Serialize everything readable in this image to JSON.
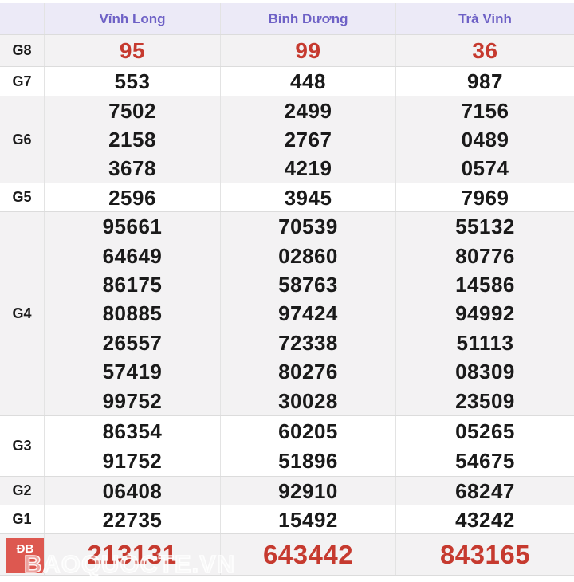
{
  "columns": [
    "Vĩnh Long",
    "Bình Dương",
    "Trà Vinh"
  ],
  "rows": [
    {
      "label": "G8",
      "highlight": "red",
      "values": [
        [
          "95"
        ],
        [
          "99"
        ],
        [
          "36"
        ]
      ]
    },
    {
      "label": "G7",
      "highlight": "none",
      "values": [
        [
          "553"
        ],
        [
          "448"
        ],
        [
          "987"
        ]
      ]
    },
    {
      "label": "G6",
      "highlight": "none",
      "values": [
        [
          "7502",
          "2158",
          "3678"
        ],
        [
          "2499",
          "2767",
          "4219"
        ],
        [
          "7156",
          "0489",
          "0574"
        ]
      ]
    },
    {
      "label": "G5",
      "highlight": "none",
      "values": [
        [
          "2596"
        ],
        [
          "3945"
        ],
        [
          "7969"
        ]
      ]
    },
    {
      "label": "G4",
      "highlight": "none",
      "values": [
        [
          "95661",
          "64649",
          "86175",
          "80885",
          "26557",
          "57419",
          "99752"
        ],
        [
          "70539",
          "02860",
          "58763",
          "97424",
          "72338",
          "80276",
          "30028"
        ],
        [
          "55132",
          "80776",
          "14586",
          "94992",
          "51113",
          "08309",
          "23509"
        ]
      ]
    },
    {
      "label": "G3",
      "highlight": "none",
      "values": [
        [
          "86354",
          "91752"
        ],
        [
          "60205",
          "51896"
        ],
        [
          "05265",
          "54675"
        ]
      ]
    },
    {
      "label": "G2",
      "highlight": "none",
      "values": [
        [
          "06408"
        ],
        [
          "92910"
        ],
        [
          "68247"
        ]
      ]
    },
    {
      "label": "G1",
      "highlight": "none",
      "values": [
        [
          "22735"
        ],
        [
          "15492"
        ],
        [
          "43242"
        ]
      ]
    },
    {
      "label": "ĐB",
      "highlight": "special",
      "values": [
        [
          "213131"
        ],
        [
          "643442"
        ],
        [
          "843165"
        ]
      ]
    }
  ],
  "watermark": "BAOQUOCTE.VN",
  "colors": {
    "header_bg": "#eceaf7",
    "header_text": "#6e61c6",
    "shaded_row_bg": "#f3f2f3",
    "red_number": "#c63a2f",
    "black_number": "#1a1a1a",
    "special_label_bg": "#dd5850"
  }
}
